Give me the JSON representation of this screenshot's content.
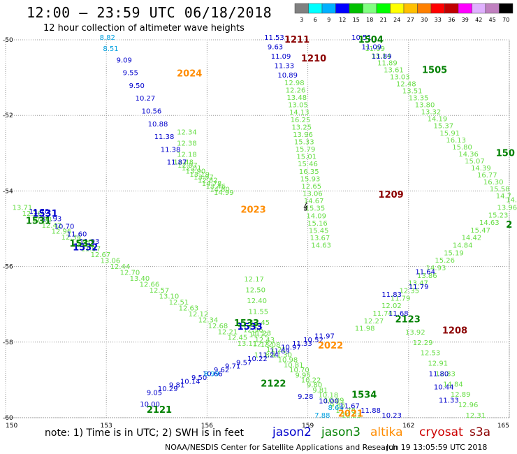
{
  "header": {
    "title": "12:00 – 23:59 UTC 06/18/2018",
    "subtitle": "12 hour collection of altimeter wave heights"
  },
  "legend": {
    "colors": [
      "#808080",
      "#00ffff",
      "#00b0ff",
      "#0000ff",
      "#00c000",
      "#80ff80",
      "#00ff00",
      "#ffff00",
      "#ffc000",
      "#ff8000",
      "#ff0000",
      "#c00000",
      "#ff00ff",
      "#e0b0ff",
      "#c080c0",
      "#000000"
    ],
    "labels": [
      "3",
      "6",
      "9",
      "12",
      "15",
      "18",
      "21",
      "24",
      "27",
      "30",
      "33",
      "36",
      "39",
      "42",
      "45",
      "70",
      "(ft)"
    ]
  },
  "axes": {
    "y_ticks": [
      "-50",
      "-52",
      "-54",
      "-56",
      "-58",
      "-60"
    ],
    "x_ticks": [
      "150",
      "153",
      "156",
      "159",
      "162",
      "165"
    ]
  },
  "chart_data": {
    "type": "scatter",
    "x_range": [
      150,
      165
    ],
    "y_range": [
      -60,
      -50
    ],
    "label_colors": {
      "jason2": "#0000cc",
      "jason3": "#008000",
      "altika": "#ff8c00",
      "cryosat": "#cc0000",
      "s3a": "#8b0000",
      "cyan": "#00a0e0",
      "light_green": "#66dd44"
    },
    "pass_ids": [
      {
        "text": "2024",
        "lon": 155.1,
        "lat": -50.9,
        "sat": "altika"
      },
      {
        "text": "2023",
        "lon": 157.0,
        "lat": -54.5,
        "sat": "altika"
      },
      {
        "text": "2022",
        "lon": 159.3,
        "lat": -58.1,
        "sat": "altika"
      },
      {
        "text": "2021",
        "lon": 159.9,
        "lat": -59.9,
        "sat": "altika"
      },
      {
        "text": "1211",
        "lon": 158.3,
        "lat": -50.0,
        "sat": "s3a"
      },
      {
        "text": "1210",
        "lon": 158.8,
        "lat": -50.5,
        "sat": "s3a"
      },
      {
        "text": "1209",
        "lon": 161.1,
        "lat": -54.1,
        "sat": "s3a"
      },
      {
        "text": "1208",
        "lon": 163.0,
        "lat": -57.7,
        "sat": "s3a"
      },
      {
        "text": "1504",
        "lon": 160.5,
        "lat": -50.0,
        "sat": "jason3"
      },
      {
        "text": "1505",
        "lon": 162.4,
        "lat": -50.8,
        "sat": "jason3"
      },
      {
        "text": "150",
        "lon": 164.6,
        "lat": -53.0,
        "sat": "jason3"
      },
      {
        "text": "2",
        "lon": 164.9,
        "lat": -54.9,
        "sat": "jason3"
      },
      {
        "text": "1531",
        "lon": 150.8,
        "lat": -54.6,
        "sat": "jason2"
      },
      {
        "text": "1531",
        "lon": 150.6,
        "lat": -54.8,
        "sat": "jason3"
      },
      {
        "text": "1532",
        "lon": 152.0,
        "lat": -55.5,
        "sat": "jason2"
      },
      {
        "text": "1532",
        "lon": 151.9,
        "lat": -55.4,
        "sat": "jason3"
      },
      {
        "text": "1533",
        "lon": 156.9,
        "lat": -57.6,
        "sat": "jason2"
      },
      {
        "text": "1533",
        "lon": 156.8,
        "lat": -57.5,
        "sat": "jason3"
      },
      {
        "text": "2123",
        "lon": 161.6,
        "lat": -57.4,
        "sat": "jason3"
      },
      {
        "text": "2122",
        "lon": 157.6,
        "lat": -59.1,
        "sat": "jason3"
      },
      {
        "text": "2121",
        "lon": 154.2,
        "lat": -59.8,
        "sat": "jason3"
      },
      {
        "text": "1534",
        "lon": 160.3,
        "lat": -59.4,
        "sat": "jason3"
      }
    ],
    "tracks": [
      {
        "name": "2024-track",
        "color": "light_green",
        "start": [
          155.0,
          -53.3
        ],
        "end": [
          156.2,
          -54.1
        ],
        "values": [
          "12.48",
          "12.97",
          "12.01",
          "13.90",
          "13.19",
          "13.97",
          "12.82",
          "14.78",
          "13.46",
          "14.80",
          "14.99"
        ]
      },
      {
        "name": "2024-blue",
        "color": "jason2",
        "start": [
          153.3,
          -50.6
        ],
        "end": [
          154.8,
          -53.3
        ],
        "values": [
          "9.09",
          "9.55",
          "9.50",
          "10.27",
          "10.56",
          "10.88",
          "11.38",
          "11.38",
          "11.87"
        ]
      },
      {
        "name": "2024-cyan",
        "color": "cyan",
        "start": [
          152.8,
          -50.0
        ],
        "end": [
          152.9,
          -50.3
        ],
        "values": [
          "8.82",
          "8.51"
        ]
      },
      {
        "name": "2024-green2",
        "color": "light_green",
        "start": [
          155.1,
          -52.5
        ],
        "end": [
          155.1,
          -53.1
        ],
        "values": [
          "12.34",
          "12.38",
          "12.18"
        ]
      },
      {
        "name": "2023-lower",
        "color": "light_green",
        "start": [
          157.1,
          -56.4
        ],
        "end": [
          157.4,
          -58.4
        ],
        "values": [
          "12.17",
          "12.50",
          "12.40",
          "11.55",
          "13.45",
          "11.23",
          "12.72",
          "11.89"
        ]
      },
      {
        "name": "s3a-1210",
        "color": "jason2",
        "start": [
          157.7,
          -50.0
        ],
        "end": [
          158.1,
          -51.0
        ],
        "values": [
          "11.53",
          "9.63",
          "11.09",
          "11.33",
          "10.89"
        ]
      },
      {
        "name": "s3a-1210-green",
        "color": "light_green",
        "start": [
          158.3,
          -51.2
        ],
        "end": [
          159.1,
          -55.5
        ],
        "values": [
          "12.98",
          "12.26",
          "13.48",
          "13.05",
          "14.13",
          "16.25",
          "13.25",
          "13.96",
          "15.33",
          "15.79",
          "15.01",
          "15.46",
          "16.35",
          "15.93",
          "12.65",
          "13.06",
          "14.67",
          "15.35",
          "14.09",
          "15.16",
          "15.45",
          "13.67",
          "14.63"
        ]
      },
      {
        "name": "1504-track",
        "color": "light_green",
        "start": [
          160.7,
          -50.3
        ],
        "end": [
          164.6,
          -54.2
        ],
        "values": [
          "11.09",
          "13.14",
          "11.89",
          "13.61",
          "13.03",
          "12.48",
          "13.51",
          "13.35",
          "13.80",
          "13.32",
          "14.19",
          "15.37",
          "15.91",
          "16.13",
          "15.80",
          "14.36",
          "15.07",
          "14.39",
          "16.77",
          "16.30",
          "15.58",
          "14.7"
        ]
      },
      {
        "name": "1504-blue",
        "color": "jason2",
        "start": [
          160.3,
          -50.0
        ],
        "end": [
          160.9,
          -50.5
        ],
        "values": [
          "10.51",
          "11.09",
          "11.89"
        ]
      },
      {
        "name": "1208-up",
        "color": "light_green",
        "start": [
          160.4,
          -57.7
        ],
        "end": [
          164.9,
          -54.3
        ],
        "values": [
          "11.98",
          "12.27",
          "11.74",
          "12.02",
          "11.79",
          "12.35",
          "13.47",
          "13.86",
          "14.93",
          "15.26",
          "15.19",
          "14.84",
          "14.42",
          "15.47",
          "14.63",
          "15.23",
          "13.96",
          "14.8"
        ]
      },
      {
        "name": "1208-down",
        "color": "light_green",
        "start": [
          161.9,
          -57.8
        ],
        "end": [
          163.7,
          -60.0
        ],
        "values": [
          "13.92",
          "12.29",
          "12.53",
          "12.91",
          "12.83",
          "14.84",
          "12.89",
          "12.96",
          "12.31"
        ]
      },
      {
        "name": "1208-blue",
        "color": "jason2",
        "start": [
          162.6,
          -58.9
        ],
        "end": [
          162.9,
          -59.6
        ],
        "values": [
          "11.80",
          "10.44",
          "11.33"
        ]
      },
      {
        "name": "1531-track",
        "color": "light_green",
        "start": [
          150.2,
          -54.5
        ],
        "end": [
          156.9,
          -58.1
        ],
        "values": [
          "13.71",
          "12.20",
          "11.93",
          "12.42",
          "12.96",
          "12.34",
          "13.01",
          "11.97",
          "12.67",
          "13.06",
          "12.44",
          "12.70",
          "13.40",
          "12.66",
          "12.57",
          "13.10",
          "12.51",
          "12.63",
          "12.12",
          "12.34",
          "12.68",
          "12.21",
          "12.45",
          "13.11"
        ]
      },
      {
        "name": "1532-blue",
        "color": "jason2",
        "start": [
          150.7,
          -54.6
        ],
        "end": [
          152.2,
          -55.4
        ],
        "values": [
          "11.70",
          "11.93",
          "10.70",
          "11.60",
          "11.93"
        ]
      },
      {
        "name": "1533-track",
        "color": "light_green",
        "start": [
          156.9,
          -57.6
        ],
        "end": [
          160.0,
          -60.0
        ],
        "values": [
          "12.26",
          "12.96",
          "11.72",
          "12.43",
          "13.08",
          "11.21",
          "11.30",
          "10.98",
          "10.81",
          "10.70",
          "9.95",
          "10.22",
          "9.80",
          "9.81",
          "10.18",
          "10.09",
          "9.85",
          "11.78",
          "10.23"
        ]
      },
      {
        "name": "2122-track",
        "color": "jason2",
        "start": [
          154.2,
          -59.4
        ],
        "end": [
          159.2,
          -57.9
        ],
        "values": [
          "9.05",
          "10.29",
          "9.81",
          "10.14",
          "9.50",
          "10.66",
          "9.62",
          "9.71",
          "9.57",
          "10.22",
          "11.24",
          "11.69",
          "10.97",
          "11.33",
          "10.52",
          "11.97"
        ]
      },
      {
        "name": "2122-cyan",
        "color": "cyan",
        "start": [
          155.9,
          -58.9
        ],
        "end": [
          155.9,
          -58.9
        ],
        "values": [
          "8.99"
        ]
      },
      {
        "name": "2021-cyan",
        "color": "cyan",
        "start": [
          159.6,
          -59.8
        ],
        "end": [
          159.2,
          -60.0
        ],
        "values": [
          "8.64",
          "7.88"
        ]
      },
      {
        "name": "2021-blue",
        "color": "jason2",
        "start": [
          158.7,
          -59.5
        ],
        "end": [
          161.2,
          -60.0
        ],
        "values": [
          "9.28",
          "10.00",
          "11.67",
          "11.88",
          "10.23"
        ]
      },
      {
        "name": "2121-blue",
        "color": "jason2",
        "start": [
          154.0,
          -59.7
        ],
        "end": [
          154.0,
          -59.7
        ],
        "values": [
          "10.00"
        ]
      },
      {
        "name": "2123-blue",
        "color": "jason2",
        "start": [
          161.2,
          -56.8
        ],
        "end": [
          161.4,
          -57.3
        ],
        "values": [
          "11.83",
          "11.68"
        ]
      },
      {
        "name": "2123-blue2",
        "color": "jason2",
        "start": [
          162.2,
          -56.2
        ],
        "end": [
          162.0,
          -56.6
        ],
        "values": [
          "11.64",
          "11.79"
        ]
      }
    ]
  },
  "footer": {
    "note": "note: 1) Time is in UTC; 2) SWH is in feet",
    "sats": [
      {
        "label": "jason2",
        "color": "#0000cc"
      },
      {
        "label": "jason3",
        "color": "#008000"
      },
      {
        "label": "altika",
        "color": "#ff8c00"
      },
      {
        "label": "cryosat",
        "color": "#cc0000"
      },
      {
        "label": "s3a",
        "color": "#8b0000"
      }
    ],
    "credit": "NOAA/NESDIS Center for Satellite Applications and Research",
    "stamp": "Jun 19 13:05:59 UTC 2018"
  }
}
